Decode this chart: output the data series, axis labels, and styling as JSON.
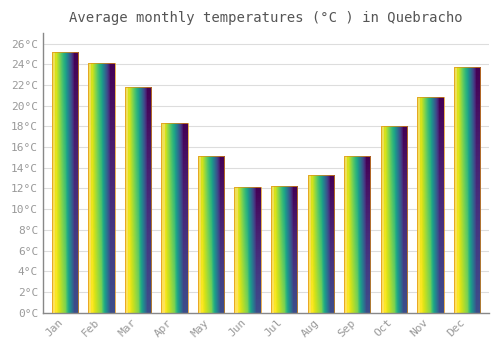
{
  "title": "Average monthly temperatures (°C ) in Quebracho",
  "months": [
    "Jan",
    "Feb",
    "Mar",
    "Apr",
    "May",
    "Jun",
    "Jul",
    "Aug",
    "Sep",
    "Oct",
    "Nov",
    "Dec"
  ],
  "values": [
    25.2,
    24.1,
    21.8,
    18.3,
    15.1,
    12.1,
    12.2,
    13.3,
    15.1,
    18.0,
    20.8,
    23.7
  ],
  "bar_color_bottom": "#F5A623",
  "bar_color_top": "#FFD966",
  "bar_color_left": "#FFE08A",
  "background_color": "#ffffff",
  "grid_color": "#dddddd",
  "ylim": [
    0,
    27
  ],
  "ytick_step": 2,
  "title_fontsize": 10,
  "tick_fontsize": 8,
  "tick_font_color": "#999999",
  "title_color": "#555555",
  "bar_width": 0.72
}
